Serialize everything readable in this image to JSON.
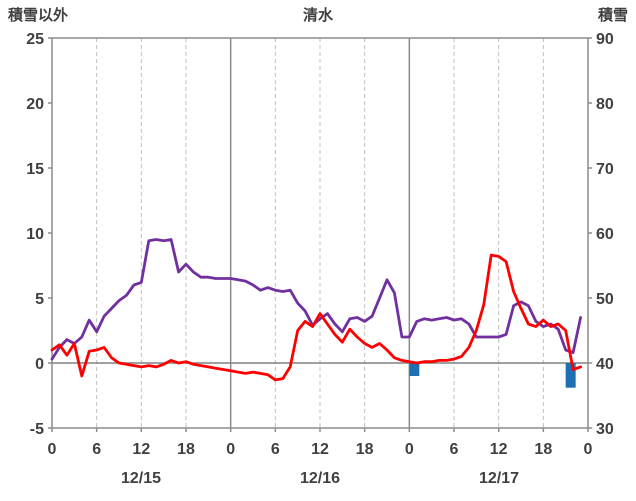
{
  "header": {
    "left_axis_title": "積雪以外",
    "station_title": "清水",
    "right_axis_title": "積雪"
  },
  "chart_data": {
    "type": "line",
    "title": "清水",
    "x_hours_span": 72,
    "x_tick_interval_hours": 6,
    "x_tick_labels": [
      "0",
      "6",
      "12",
      "18",
      "0",
      "6",
      "12",
      "18",
      "0",
      "6",
      "12",
      "18",
      "0"
    ],
    "date_labels": [
      "12/15",
      "12/16",
      "12/17"
    ],
    "left_axis": {
      "title": "積雪以外",
      "min": -5,
      "max": 25,
      "tick_step": 5,
      "ticks": [
        "25",
        "20",
        "15",
        "10",
        "5",
        "0",
        "-5"
      ]
    },
    "right_axis": {
      "title": "積雪",
      "min": 30,
      "max": 90,
      "tick_step": 10,
      "ticks": [
        "90",
        "80",
        "70",
        "60",
        "50",
        "40",
        "30"
      ]
    },
    "grid": {
      "vertical_dashed_every_hours": 6,
      "solid_day_boundaries_hours": [
        24,
        48
      ],
      "horizontal_lines": "zero-only"
    },
    "series": [
      {
        "name": "purple",
        "color": "#7030A0",
        "axis": "left",
        "values": [
          0.3,
          1.2,
          1.8,
          1.5,
          2.0,
          3.3,
          2.4,
          3.6,
          4.2,
          4.8,
          5.2,
          6.0,
          6.2,
          9.4,
          9.5,
          9.4,
          9.5,
          7.0,
          7.6,
          7.0,
          6.6,
          6.6,
          6.5,
          6.5,
          6.5,
          6.4,
          6.3,
          6.0,
          5.6,
          5.8,
          5.6,
          5.5,
          5.6,
          4.6,
          4.0,
          2.9,
          3.4,
          3.8,
          3.0,
          2.4,
          3.4,
          3.5,
          3.2,
          3.6,
          5.0,
          6.4,
          5.4,
          2.0,
          2.0,
          3.2,
          3.4,
          3.3,
          3.4,
          3.5,
          3.3,
          3.4,
          3.0,
          2.0,
          2.0,
          2.0,
          2.0,
          2.2,
          4.4,
          4.7,
          4.4,
          3.2,
          2.8,
          3.0,
          2.6,
          1.0,
          0.8,
          3.5
        ]
      },
      {
        "name": "red",
        "color": "#FF0000",
        "axis": "left",
        "values": [
          1.0,
          1.4,
          0.6,
          1.5,
          -1.0,
          0.9,
          1.0,
          1.2,
          0.4,
          0.0,
          -0.1,
          -0.2,
          -0.3,
          -0.2,
          -0.3,
          -0.1,
          0.2,
          0.0,
          0.1,
          -0.1,
          -0.2,
          -0.3,
          -0.4,
          -0.5,
          -0.6,
          -0.7,
          -0.8,
          -0.7,
          -0.8,
          -0.9,
          -1.3,
          -1.2,
          -0.3,
          2.5,
          3.2,
          2.8,
          3.8,
          3.0,
          2.2,
          1.6,
          2.6,
          2.0,
          1.5,
          1.2,
          1.5,
          1.0,
          0.4,
          0.2,
          0.1,
          0.0,
          0.1,
          0.1,
          0.2,
          0.2,
          0.3,
          0.5,
          1.2,
          2.5,
          4.5,
          8.3,
          8.2,
          7.8,
          5.5,
          4.2,
          3.0,
          2.8,
          3.3,
          2.8,
          3.0,
          2.5,
          -0.5,
          -0.3
        ]
      }
    ],
    "bars": [
      {
        "hour": 48,
        "value": -1.0
      },
      {
        "hour": 69,
        "value": -1.9
      }
    ],
    "bar_color": "#1F6FB5",
    "colors": {
      "grid_dashed": "#BFBFBF",
      "frame": "#8C8C8C",
      "day_line": "#8C8C8C",
      "zero_line": "#808080",
      "text": "#404040"
    }
  }
}
